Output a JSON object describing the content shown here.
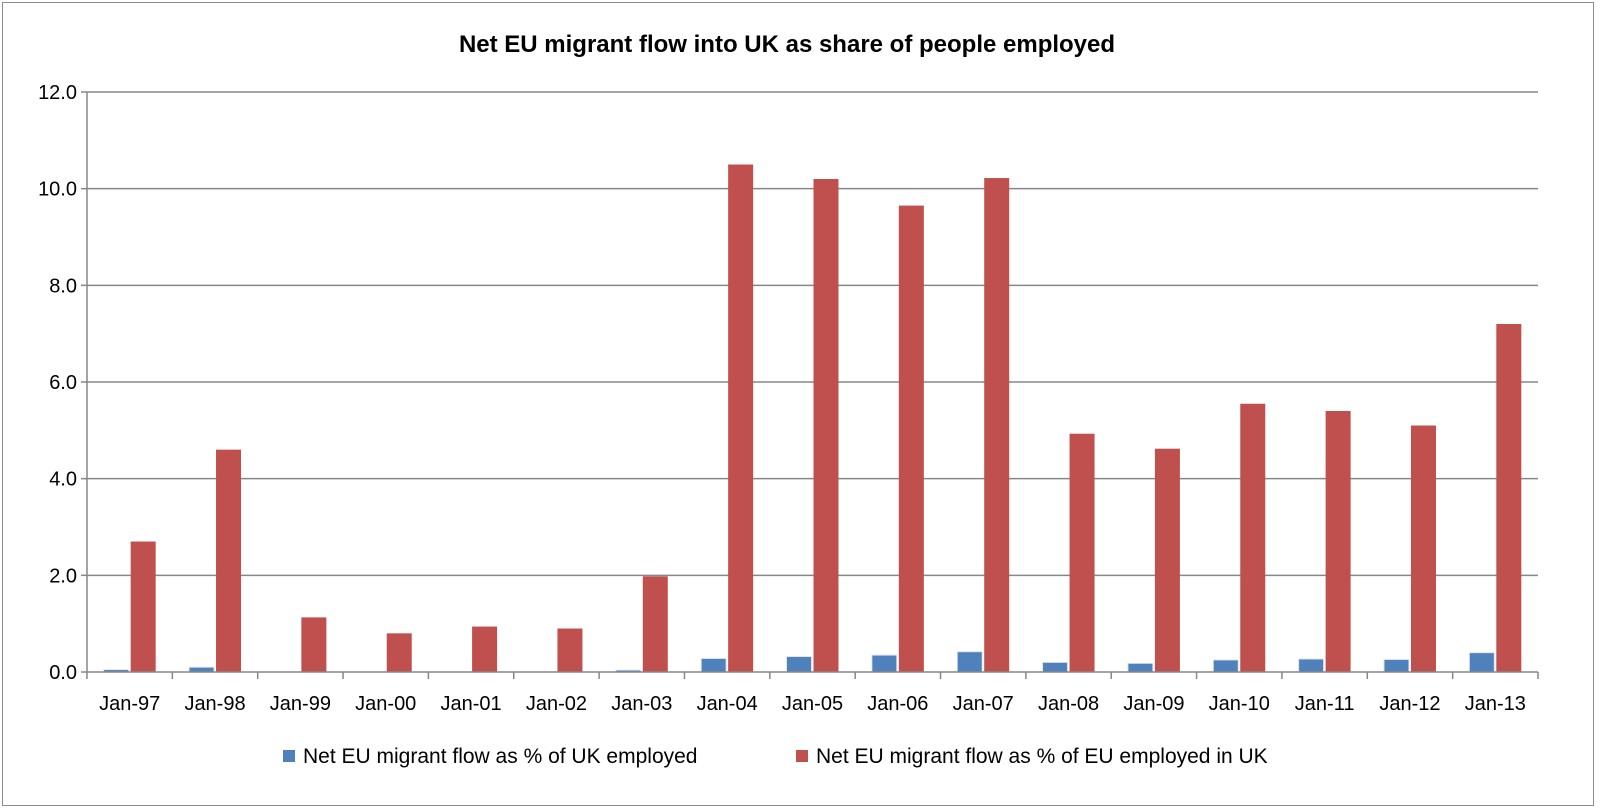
{
  "chart_data": {
    "type": "bar",
    "title": "Net EU migrant flow into UK as share of people employed",
    "xlabel": "",
    "ylabel": "",
    "categories": [
      "Jan-97",
      "Jan-98",
      "Jan-99",
      "Jan-00",
      "Jan-01",
      "Jan-02",
      "Jan-03",
      "Jan-04",
      "Jan-05",
      "Jan-06",
      "Jan-07",
      "Jan-08",
      "Jan-09",
      "Jan-10",
      "Jan-11",
      "Jan-12",
      "Jan-13"
    ],
    "ylim": [
      0,
      12
    ],
    "yticks": [
      "0.0",
      "2.0",
      "4.0",
      "6.0",
      "8.0",
      "10.0",
      "12.0"
    ],
    "ytick_values": [
      0,
      2,
      4,
      6,
      8,
      10,
      12
    ],
    "grid": true,
    "legend_position": "bottom",
    "series": [
      {
        "name": "Net EU migrant flow as % of UK employed",
        "color": "#4f81bd",
        "values": [
          0.05,
          0.1,
          0.0,
          0.0,
          0.0,
          0.0,
          0.04,
          0.28,
          0.32,
          0.35,
          0.42,
          0.2,
          0.18,
          0.25,
          0.27,
          0.26,
          0.4
        ]
      },
      {
        "name": "Net EU migrant flow as % of EU employed in UK",
        "color": "#c0504d",
        "values": [
          2.7,
          4.6,
          1.13,
          0.8,
          0.94,
          0.9,
          1.98,
          10.5,
          10.2,
          9.65,
          10.22,
          4.93,
          4.62,
          5.55,
          5.4,
          5.1,
          7.2
        ]
      }
    ]
  }
}
